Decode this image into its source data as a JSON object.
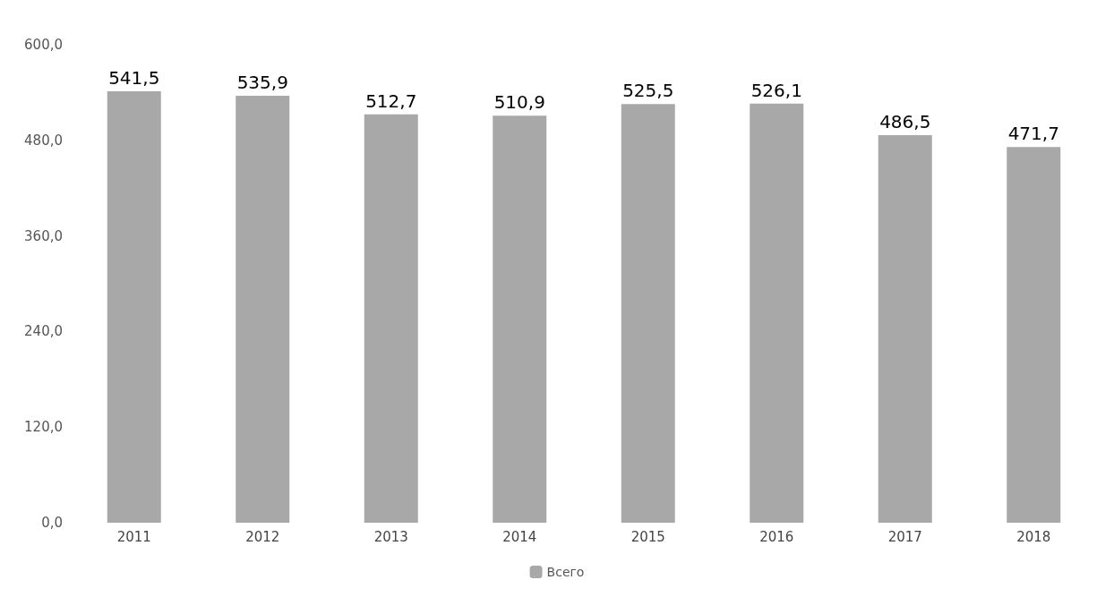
{
  "chart_data": {
    "type": "bar",
    "categories": [
      "2011",
      "2012",
      "2013",
      "2014",
      "2015",
      "2016",
      "2017",
      "2018"
    ],
    "series": [
      {
        "name": "Всего",
        "color": "#a8a8a8",
        "values": [
          541.5,
          535.9,
          512.7,
          510.9,
          525.5,
          526.1,
          486.5,
          471.7
        ],
        "value_labels": [
          "541,5",
          "535,9",
          "512,7",
          "510,9",
          "525,5",
          "526,1",
          "486,5",
          "471,7"
        ]
      }
    ],
    "ylim": [
      0,
      600
    ],
    "yticks": [
      {
        "value": 0,
        "label": "0,0"
      },
      {
        "value": 120,
        "label": "120,0"
      },
      {
        "value": 240,
        "label": "240,0"
      },
      {
        "value": 360,
        "label": "360,0"
      },
      {
        "value": 480,
        "label": "480,0"
      },
      {
        "value": 600,
        "label": "600,0"
      }
    ],
    "grid": false,
    "legend": "bottom"
  }
}
